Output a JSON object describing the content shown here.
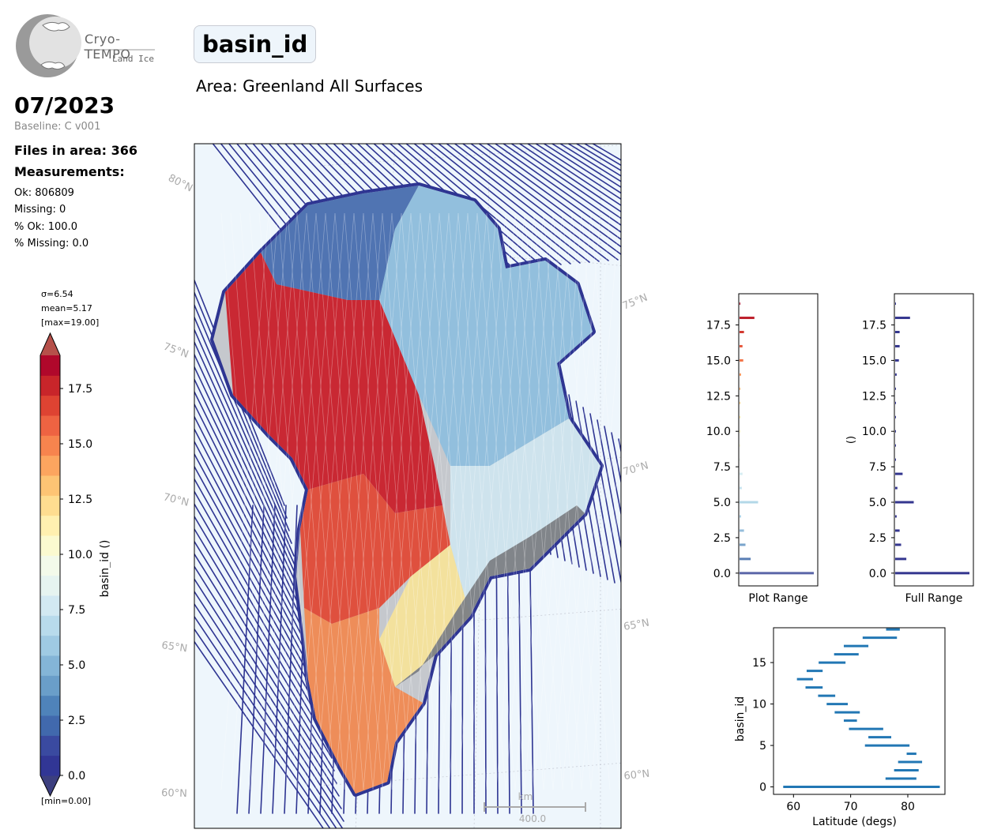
{
  "logo": {
    "line1": "Cryo-TEMPO",
    "line2": "Land Ice"
  },
  "title": "basin_id",
  "area": "Area: Greenland All Surfaces",
  "date": "07/2023",
  "baseline": "Baseline: C v001",
  "files": "Files in area: 366",
  "measurements_label": "Measurements:",
  "stats": [
    "Ok: 806809",
    "Missing: 0",
    "% Ok: 100.0",
    "% Missing: 0.0"
  ],
  "colorbar": {
    "sigma": "σ=6.54",
    "mean": "mean=5.17",
    "max": "[max=19.00]",
    "min": "[min=0.00]",
    "label": "basin_id ()",
    "ticks": [
      "0.0",
      "2.5",
      "5.0",
      "7.5",
      "10.0",
      "12.5",
      "15.0",
      "17.5"
    ],
    "colors": [
      "#313695",
      "#3a4aa0",
      "#4169ad",
      "#4f83ba",
      "#6a9ec9",
      "#84b5d7",
      "#9fcae3",
      "#b8dbec",
      "#d2e9f2",
      "#e6f4f0",
      "#f3faea",
      "#fbfad0",
      "#fff0b0",
      "#fedd90",
      "#fdc474",
      "#fca55f",
      "#f7844e",
      "#ee6342",
      "#de4332",
      "#c8252a",
      "#b0082b"
    ],
    "over_color": "#b6504a",
    "under_color": "#3c3f7f"
  },
  "map": {
    "lat_labels_left": [
      "80°N",
      "75°N",
      "70°N",
      "65°N",
      "60°N"
    ],
    "lat_labels_right": [
      "75°N",
      "70°N",
      "65°N",
      "60°N"
    ],
    "scalebar_unit": "km",
    "scalebar_value": "400.0",
    "track_color": "#2e3592",
    "ocean_color": "#eef6fc"
  },
  "chart_data": [
    {
      "type": "bar",
      "orientation": "horizontal",
      "xlabel": "Plot Range",
      "ylabel": "",
      "ylim": [
        -0.9,
        19.7
      ],
      "yticks": [
        0.0,
        2.5,
        5.0,
        7.5,
        10.0,
        12.5,
        15.0,
        17.5
      ],
      "y": [
        0,
        1,
        2,
        3,
        4,
        5,
        6,
        7,
        8,
        9,
        10,
        11,
        12,
        13,
        14,
        15,
        16,
        17,
        18,
        19
      ],
      "values": [
        1.0,
        0.15,
        0.08,
        0.06,
        0.02,
        0.25,
        0.03,
        0.04,
        0.01,
        0.01,
        0.01,
        0.01,
        0.01,
        0.01,
        0.02,
        0.05,
        0.04,
        0.06,
        0.2,
        0.01
      ],
      "colors": [
        "#5b66a8",
        "#5a7fb5",
        "#7aa4cb",
        "#95bddb",
        "#a9d0e5",
        "#b3d8e8",
        "#c5e2ee",
        "#d6ecf1",
        "#e9f5ea",
        "#f7f9d4",
        "#fff3b8",
        "#fee29a",
        "#fdcb7d",
        "#fdae66",
        "#fa9256",
        "#f27448",
        "#e5573b",
        "#d23a30",
        "#bd1f2b",
        "#a80e2b"
      ]
    },
    {
      "type": "bar",
      "orientation": "horizontal",
      "xlabel": "Full Range",
      "ylabel": "()",
      "ylim": [
        -0.9,
        19.7
      ],
      "yticks": [
        0.0,
        2.5,
        5.0,
        7.5,
        10.0,
        12.5,
        15.0,
        17.5
      ],
      "y": [
        0,
        1,
        2,
        3,
        4,
        5,
        6,
        7,
        8,
        9,
        10,
        11,
        12,
        13,
        14,
        15,
        16,
        17,
        18,
        19
      ],
      "values": [
        1.0,
        0.15,
        0.08,
        0.06,
        0.02,
        0.25,
        0.03,
        0.1,
        0.01,
        0.01,
        0.01,
        0.01,
        0.01,
        0.01,
        0.02,
        0.05,
        0.06,
        0.06,
        0.2,
        0.01
      ],
      "color": "#34368f"
    },
    {
      "type": "range",
      "xlabel": "Latitude (degs)",
      "ylabel": "basin_id",
      "xlim": [
        56.5,
        86.5
      ],
      "ylim": [
        -0.9,
        19.2
      ],
      "xticks": [
        60,
        70,
        80
      ],
      "yticks": [
        0,
        5,
        10,
        15
      ],
      "ranges": [
        {
          "y": 0,
          "min": 58.2,
          "max": 85.6
        },
        {
          "y": 1,
          "min": 76.1,
          "max": 81.5
        },
        {
          "y": 2,
          "min": 77.6,
          "max": 81.9
        },
        {
          "y": 3,
          "min": 78.3,
          "max": 82.5
        },
        {
          "y": 4,
          "min": 79.8,
          "max": 81.5
        },
        {
          "y": 5,
          "min": 72.5,
          "max": 80.3
        },
        {
          "y": 6,
          "min": 73.1,
          "max": 77.1
        },
        {
          "y": 7,
          "min": 69.7,
          "max": 75.7
        },
        {
          "y": 8,
          "min": 68.8,
          "max": 71.1
        },
        {
          "y": 9,
          "min": 67.2,
          "max": 71.6
        },
        {
          "y": 10,
          "min": 65.8,
          "max": 69.5
        },
        {
          "y": 11,
          "min": 64.3,
          "max": 67.3
        },
        {
          "y": 12,
          "min": 62.1,
          "max": 65.1
        },
        {
          "y": 13,
          "min": 60.6,
          "max": 63.4
        },
        {
          "y": 14,
          "min": 62.3,
          "max": 65.1
        },
        {
          "y": 15,
          "min": 64.4,
          "max": 69.1
        },
        {
          "y": 16,
          "min": 67.1,
          "max": 71.4
        },
        {
          "y": 17,
          "min": 68.8,
          "max": 73.1
        },
        {
          "y": 18,
          "min": 72.1,
          "max": 78.1
        },
        {
          "y": 19,
          "min": 76.2,
          "max": 78.6
        }
      ],
      "color": "#2277b4"
    }
  ]
}
